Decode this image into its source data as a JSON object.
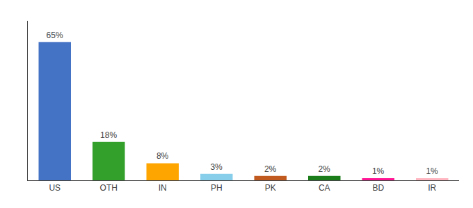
{
  "chart_data": {
    "type": "bar",
    "categories": [
      "US",
      "OTH",
      "IN",
      "PH",
      "PK",
      "CA",
      "BD",
      "IR"
    ],
    "values": [
      65,
      18,
      8,
      3,
      2,
      2,
      1,
      1
    ],
    "value_labels": [
      "65%",
      "18%",
      "8%",
      "3%",
      "2%",
      "2%",
      "1%",
      "1%"
    ],
    "colors": [
      "#4472C4",
      "#33A02C",
      "#FFA500",
      "#87CEEB",
      "#C05A1F",
      "#1A7D1A",
      "#FF1493",
      "#FFB6C1"
    ],
    "ylim": [
      0,
      75
    ],
    "grid": false,
    "data_labels": true,
    "tick_labels": "x"
  }
}
